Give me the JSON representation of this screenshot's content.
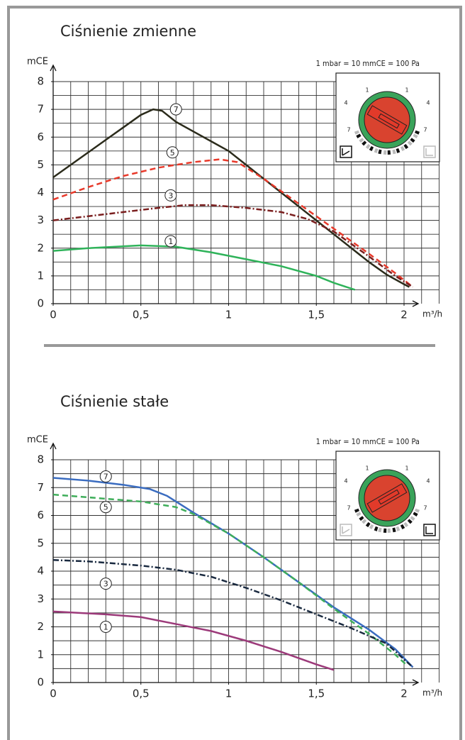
{
  "chart_data": [
    {
      "type": "line",
      "title": "Ciśnienie zmienne",
      "xlabel": "m³/h",
      "ylabel": "mCE",
      "note": "1 mbar = 10 mmCE = 100 Pa",
      "dial_labels": [
        "1",
        "4",
        "7"
      ],
      "xlim": [
        0,
        2.2
      ],
      "ylim": [
        0,
        8
      ],
      "xticks": [
        0,
        {
          "value": 0.5,
          "label": "0,5"
        },
        1,
        {
          "value": 1.5,
          "label": "1,5"
        },
        2
      ],
      "yticks": [
        0,
        1,
        2,
        3,
        4,
        5,
        6,
        7,
        8
      ],
      "x_gridlines": [
        0.1,
        0.2,
        0.3,
        0.4,
        0.5,
        0.6,
        0.7,
        0.8,
        0.9,
        1,
        1.1,
        1.2,
        1.3,
        1.4,
        1.5,
        1.6,
        1.7,
        1.8,
        1.9,
        2,
        2.1,
        2.2
      ],
      "y_gridlines": [
        0.5,
        1,
        1.5,
        2,
        2.5,
        3,
        3.5,
        4,
        4.5,
        5,
        5.5,
        6,
        6.5,
        7,
        7.5,
        8
      ],
      "series": [
        {
          "name": "7",
          "color": "#2b2b1b",
          "dash": "solid",
          "x": [
            0,
            0.1,
            0.2,
            0.3,
            0.4,
            0.5,
            0.57,
            0.62,
            0.7,
            0.8,
            0.9,
            1.0,
            1.1,
            1.2,
            1.3,
            1.4,
            1.5,
            1.6,
            1.7,
            1.8,
            1.9,
            2.0,
            2.03
          ],
          "values": [
            4.55,
            5.0,
            5.45,
            5.9,
            6.35,
            6.8,
            7.0,
            6.95,
            6.55,
            6.2,
            5.85,
            5.5,
            5.0,
            4.5,
            4.0,
            3.5,
            3.0,
            2.5,
            2.0,
            1.5,
            1.05,
            0.7,
            0.6
          ]
        },
        {
          "name": "5",
          "color": "#e8392a",
          "dash": "dashed",
          "x": [
            0,
            0.2,
            0.4,
            0.6,
            0.8,
            0.95,
            1.05,
            1.2,
            1.4,
            1.6,
            1.8,
            1.95,
            2.05
          ],
          "values": [
            3.75,
            4.2,
            4.6,
            4.9,
            5.1,
            5.2,
            5.1,
            4.5,
            3.6,
            2.7,
            1.8,
            1.1,
            0.6
          ]
        },
        {
          "name": "3",
          "color": "#7a1e1e",
          "dash": "dashdot",
          "x": [
            0,
            0.2,
            0.4,
            0.6,
            0.75,
            0.9,
            1.1,
            1.3,
            1.45,
            1.6,
            1.8,
            1.95,
            2.05
          ],
          "values": [
            3.0,
            3.15,
            3.3,
            3.45,
            3.55,
            3.55,
            3.45,
            3.3,
            3.05,
            2.6,
            1.7,
            1.0,
            0.6
          ]
        },
        {
          "name": "1",
          "color": "#2fb35a",
          "dash": "solid",
          "x": [
            0,
            0.2,
            0.5,
            0.7,
            0.9,
            1.1,
            1.3,
            1.5,
            1.6,
            1.72
          ],
          "values": [
            1.9,
            2.0,
            2.1,
            2.05,
            1.85,
            1.6,
            1.35,
            1.0,
            0.75,
            0.5
          ]
        }
      ]
    },
    {
      "type": "line",
      "title": "Ciśnienie stałe",
      "xlabel": "m³/h",
      "ylabel": "mCE",
      "note": "1 mbar = 10 mmCE = 100 Pa",
      "dial_labels": [
        "1",
        "4",
        "7"
      ],
      "xlim": [
        0,
        2.2
      ],
      "ylim": [
        0,
        8
      ],
      "xticks": [
        0,
        {
          "value": 0.5,
          "label": "0,5"
        },
        1,
        {
          "value": 1.5,
          "label": "1,5"
        },
        2
      ],
      "yticks": [
        0,
        1,
        2,
        3,
        4,
        5,
        6,
        7,
        8
      ],
      "x_gridlines": [
        0.1,
        0.2,
        0.3,
        0.4,
        0.5,
        0.6,
        0.7,
        0.8,
        0.9,
        1,
        1.1,
        1.2,
        1.3,
        1.4,
        1.5,
        1.6,
        1.7,
        1.8,
        1.9,
        2,
        2.1,
        2.2
      ],
      "y_gridlines": [
        0.5,
        1,
        1.5,
        2,
        2.5,
        3,
        3.5,
        4,
        4.5,
        5,
        5.5,
        6,
        6.5,
        7,
        7.5,
        8
      ],
      "series": [
        {
          "name": "7",
          "color": "#3a6cc0",
          "dash": "solid",
          "x": [
            0,
            0.2,
            0.4,
            0.55,
            0.65,
            0.8,
            1.0,
            1.2,
            1.4,
            1.6,
            1.8,
            1.95,
            2.05
          ],
          "values": [
            7.35,
            7.25,
            7.1,
            6.95,
            6.7,
            6.1,
            5.35,
            4.5,
            3.6,
            2.7,
            1.9,
            1.2,
            0.55
          ]
        },
        {
          "name": "5",
          "color": "#3fae5a",
          "dash": "dashed",
          "x": [
            0,
            0.2,
            0.5,
            0.7,
            0.8,
            1.0,
            1.2,
            1.4,
            1.6,
            1.8,
            1.95,
            2.02
          ],
          "values": [
            6.75,
            6.65,
            6.5,
            6.3,
            6.05,
            5.35,
            4.5,
            3.6,
            2.65,
            1.75,
            1.0,
            0.6
          ]
        },
        {
          "name": "3",
          "color": "#1a2a40",
          "dash": "dashdot",
          "x": [
            0,
            0.2,
            0.5,
            0.7,
            0.9,
            1.1,
            1.3,
            1.5,
            1.7,
            1.9,
            2.05
          ],
          "values": [
            4.4,
            4.35,
            4.2,
            4.05,
            3.8,
            3.4,
            2.95,
            2.45,
            1.95,
            1.4,
            0.55
          ]
        },
        {
          "name": "1",
          "color": "#9c3a7a",
          "dash": "solid",
          "x": [
            0,
            0.3,
            0.5,
            0.7,
            0.9,
            1.1,
            1.3,
            1.5,
            1.6
          ],
          "values": [
            2.55,
            2.45,
            2.35,
            2.1,
            1.85,
            1.5,
            1.1,
            0.65,
            0.45
          ]
        }
      ]
    }
  ]
}
